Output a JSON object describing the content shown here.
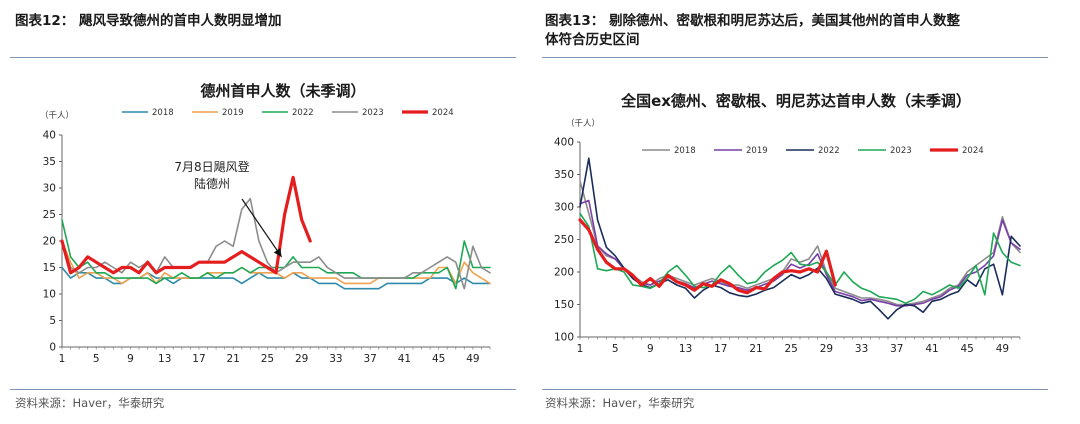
{
  "figures": [
    {
      "title": "图表12：  飓风导致德州的首申人数明显增加",
      "source": "资料来源：Haver，华泰研究"
    },
    {
      "title_line1": "图表13：  剔除德州、密歇根和明尼苏达后，美国其他州的首申人数整",
      "title_line2": "体符合历史区间",
      "source": "资料来源：Haver，华泰研究"
    }
  ],
  "chart_data": [
    {
      "type": "line",
      "title": "德州首申人数（未季调）",
      "ylabel": "（千人）",
      "xlabel": "",
      "xlim": [
        1,
        51
      ],
      "ylim": [
        0,
        40
      ],
      "x_ticks": [
        1,
        5,
        9,
        13,
        17,
        21,
        25,
        29,
        33,
        37,
        41,
        45,
        49
      ],
      "y_ticks": [
        0,
        5,
        10,
        15,
        20,
        25,
        30,
        35,
        40
      ],
      "grid": false,
      "legend_position": "top",
      "annotation": {
        "line1": "7月8日飓风登",
        "line2": "陆德州",
        "arrow_to": [
          27,
          17
        ]
      },
      "series": [
        {
          "name": "2018",
          "color": "#2e8bab",
          "width": 1.6,
          "values": [
            15,
            13,
            14,
            14,
            13,
            13,
            12,
            12,
            13,
            13,
            14,
            13,
            13,
            12,
            13,
            13,
            13,
            13,
            13,
            13,
            13,
            12,
            13,
            14,
            13,
            13,
            13,
            14,
            13,
            13,
            12,
            12,
            12,
            11,
            11,
            11,
            11,
            11,
            12,
            12,
            12,
            12,
            12,
            13,
            13,
            13,
            12,
            13,
            12,
            12,
            12
          ]
        },
        {
          "name": "2019",
          "color": "#f0a24f",
          "width": 1.6,
          "values": [
            20,
            16,
            13,
            14,
            14,
            13,
            13,
            12,
            13,
            13,
            14,
            12,
            14,
            13,
            13,
            13,
            13,
            14,
            14,
            14,
            14,
            15,
            14,
            14,
            14,
            14,
            13,
            14,
            14,
            13,
            13,
            13,
            13,
            12,
            12,
            12,
            12,
            13,
            13,
            13,
            13,
            13,
            13,
            13,
            15,
            15,
            12,
            16,
            14,
            13,
            12
          ]
        },
        {
          "name": "2022",
          "color": "#1fa855",
          "width": 1.6,
          "values": [
            24,
            17,
            15,
            16,
            14,
            14,
            13,
            13,
            13,
            13,
            13,
            12,
            13,
            13,
            14,
            13,
            13,
            14,
            13,
            14,
            14,
            15,
            14,
            15,
            15,
            15,
            15,
            17,
            15,
            15,
            15,
            14,
            14,
            14,
            14,
            13,
            13,
            13,
            13,
            13,
            13,
            13,
            14,
            14,
            14,
            15,
            11,
            20,
            15,
            15,
            15
          ]
        },
        {
          "name": "2023",
          "color": "#8c8c8c",
          "width": 1.6,
          "values": [
            20,
            15,
            14,
            15,
            15,
            16,
            15,
            14,
            16,
            15,
            16,
            14,
            17,
            15,
            15,
            15,
            16,
            16,
            19,
            20,
            19,
            26,
            28,
            20,
            16,
            14,
            15,
            16,
            16,
            16,
            17,
            15,
            14,
            13,
            13,
            13,
            13,
            13,
            13,
            13,
            13,
            14,
            14,
            15,
            16,
            17,
            16,
            11,
            19,
            15,
            14
          ]
        },
        {
          "name": "2024",
          "color": "#e41e1e",
          "width": 3.2,
          "values": [
            20,
            14,
            15,
            17,
            16,
            15,
            14,
            15,
            15,
            14,
            16,
            14,
            15,
            15,
            15,
            15,
            16,
            16,
            16,
            16,
            17,
            18,
            17,
            16,
            15,
            14,
            25,
            32,
            24,
            20,
            null,
            null,
            null,
            null,
            null,
            null,
            null,
            null,
            null,
            null,
            null,
            null,
            null,
            null,
            null,
            null,
            null,
            null,
            null,
            null,
            null
          ]
        }
      ]
    },
    {
      "type": "line",
      "title": "全国ex德州、密歇根、明尼苏达首申人数（未季调）",
      "ylabel": "（千人）",
      "xlabel": "",
      "xlim": [
        1,
        51
      ],
      "ylim": [
        100,
        400
      ],
      "x_ticks": [
        1,
        5,
        9,
        13,
        17,
        21,
        25,
        29,
        33,
        37,
        41,
        45,
        49
      ],
      "y_ticks": [
        100,
        150,
        200,
        250,
        300,
        350,
        400
      ],
      "grid": false,
      "legend_position": "top",
      "series": [
        {
          "name": "2018",
          "color": "#8c8c8c",
          "width": 1.6,
          "values": [
            340,
            290,
            240,
            225,
            220,
            205,
            195,
            185,
            180,
            190,
            195,
            190,
            185,
            180,
            185,
            190,
            185,
            180,
            180,
            175,
            180,
            185,
            190,
            200,
            220,
            215,
            220,
            240,
            200,
            175,
            170,
            165,
            160,
            160,
            158,
            155,
            150,
            150,
            152,
            155,
            160,
            165,
            175,
            180,
            200,
            210,
            220,
            230,
            285,
            245,
            230
          ]
        },
        {
          "name": "2019",
          "color": "#7a3fa8",
          "width": 1.6,
          "values": [
            305,
            310,
            240,
            228,
            220,
            205,
            190,
            182,
            180,
            186,
            192,
            186,
            182,
            176,
            181,
            186,
            182,
            178,
            176,
            172,
            176,
            181,
            186,
            196,
            212,
            206,
            212,
            228,
            196,
            170,
            166,
            162,
            156,
            158,
            155,
            152,
            148,
            148,
            150,
            152,
            158,
            162,
            172,
            178,
            195,
            200,
            210,
            225,
            280,
            245,
            235
          ]
        },
        {
          "name": "2022",
          "color": "#1a2d5a",
          "width": 1.6,
          "values": [
            300,
            375,
            280,
            238,
            225,
            206,
            190,
            180,
            176,
            182,
            188,
            180,
            175,
            160,
            172,
            180,
            176,
            168,
            164,
            162,
            166,
            172,
            176,
            186,
            196,
            190,
            196,
            206,
            190,
            166,
            162,
            158,
            152,
            155,
            142,
            128,
            142,
            150,
            148,
            138,
            155,
            158,
            165,
            170,
            188,
            178,
            205,
            212,
            165,
            255,
            240
          ]
        },
        {
          "name": "2023",
          "color": "#1fa855",
          "width": 1.6,
          "values": [
            290,
            270,
            205,
            202,
            205,
            200,
            180,
            178,
            175,
            182,
            200,
            210,
            195,
            178,
            176,
            180,
            198,
            210,
            195,
            182,
            185,
            200,
            210,
            218,
            230,
            212,
            210,
            215,
            200,
            180,
            200,
            185,
            175,
            170,
            162,
            160,
            158,
            152,
            158,
            170,
            165,
            172,
            180,
            175,
            190,
            210,
            165,
            260,
            230,
            215,
            210
          ]
        },
        {
          "name": "2024",
          "color": "#e41e1e",
          "width": 3.2,
          "values": [
            280,
            265,
            235,
            215,
            205,
            205,
            195,
            180,
            190,
            178,
            195,
            185,
            180,
            172,
            182,
            178,
            188,
            182,
            172,
            168,
            176,
            174,
            190,
            200,
            202,
            200,
            205,
            200,
            232,
            180,
            null,
            null,
            null,
            null,
            null,
            null,
            null,
            null,
            null,
            null,
            null,
            null,
            null,
            null,
            null,
            null,
            null,
            null,
            null,
            null,
            null
          ]
        }
      ]
    }
  ]
}
